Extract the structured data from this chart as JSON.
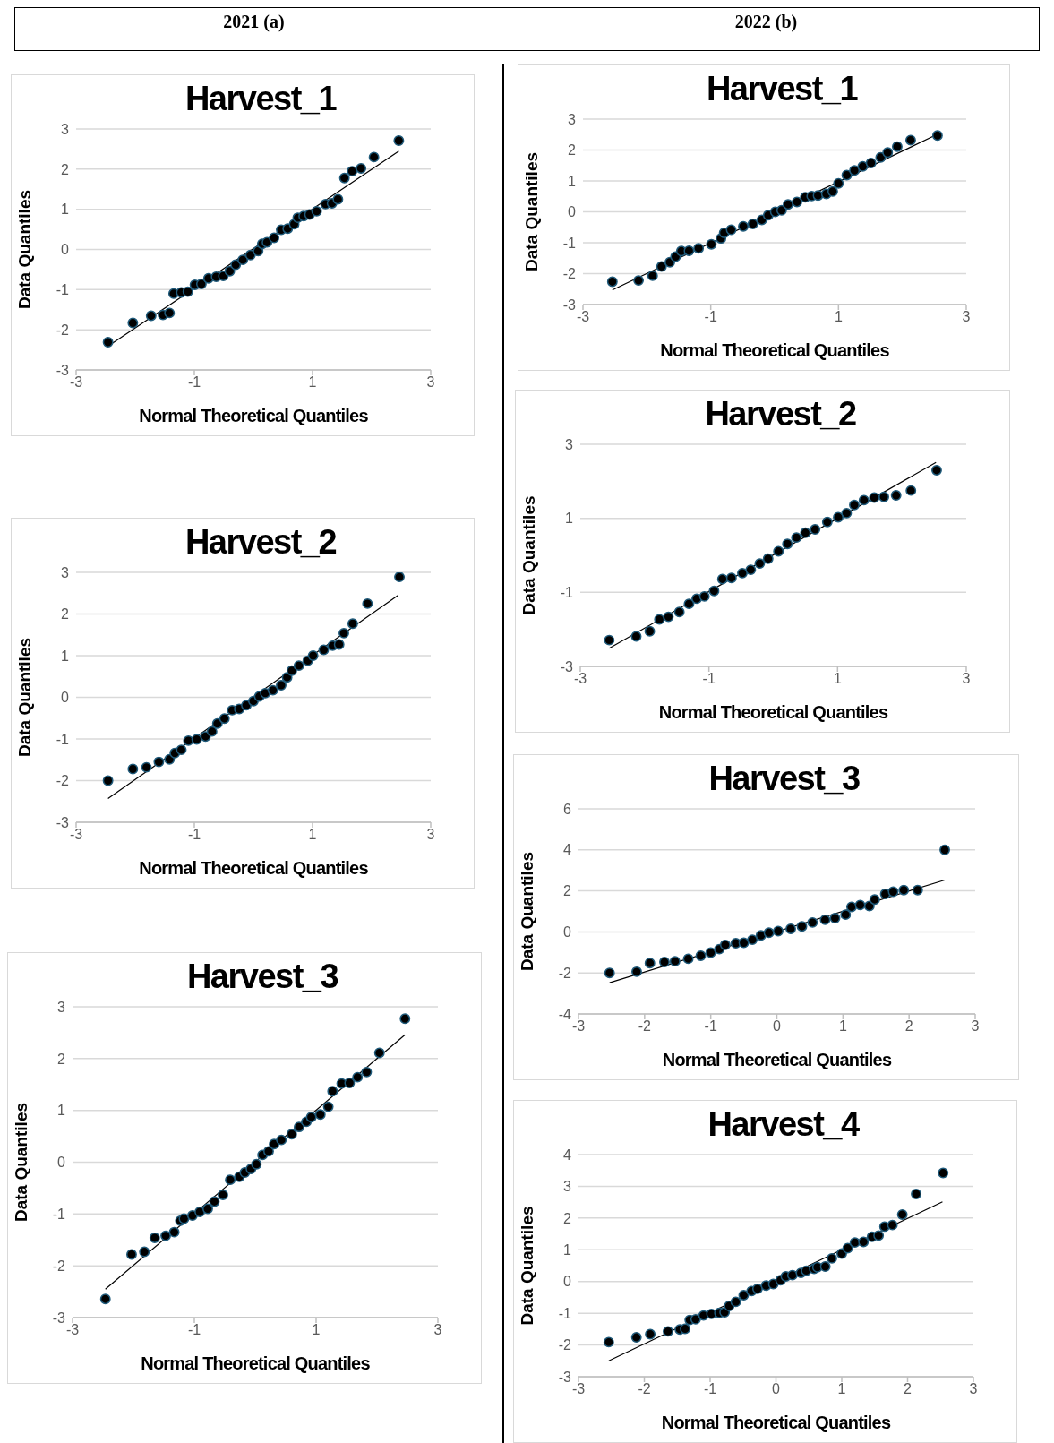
{
  "chart_data": [
    {
      "type": "other",
      "title": "2021 (a)"
    },
    {
      "type": "other",
      "title": "2022 (b)"
    },
    {
      "type": "scatter",
      "title": "Harvest_1",
      "xlabel": "Normal Theoretical Quantiles",
      "ylabel": "Data Quantiles",
      "xlim": [
        -3,
        3
      ],
      "xticks": [
        -3,
        -1,
        1,
        3
      ],
      "ylim": [
        -3,
        3
      ],
      "yticks": [
        -3,
        -2,
        -1,
        0,
        1,
        2,
        3
      ],
      "grid": "y",
      "marker": "circle",
      "series": [
        {
          "color": "#000000",
          "x": [
            -2.46,
            -2.04,
            -1.73,
            -1.53,
            -1.42,
            -1.35,
            -1.22,
            -1.11,
            -0.99,
            -0.88,
            -0.76,
            -0.63,
            -0.51,
            -0.4,
            -0.3,
            -0.18,
            -0.05,
            0.08,
            0.15,
            0.23,
            0.35,
            0.47,
            0.58,
            0.69,
            0.75,
            0.85,
            0.95,
            1.07,
            1.22,
            1.33,
            1.43,
            1.54,
            1.67,
            1.82,
            2.04,
            2.46
          ],
          "values": [
            -2.31,
            -1.83,
            -1.65,
            -1.63,
            -1.58,
            -1.1,
            -1.07,
            -1.05,
            -0.88,
            -0.86,
            -0.72,
            -0.68,
            -0.66,
            -0.54,
            -0.38,
            -0.26,
            -0.14,
            -0.04,
            0.14,
            0.18,
            0.29,
            0.49,
            0.52,
            0.63,
            0.79,
            0.83,
            0.87,
            0.95,
            1.13,
            1.15,
            1.25,
            1.78,
            1.95,
            2.02,
            2.3,
            2.71
          ]
        },
        {
          "type": "line",
          "color": "#000000",
          "marker": "none",
          "x": [
            -2.41,
            2.46
          ],
          "values": [
            -2.36,
            2.45
          ]
        }
      ]
    },
    {
      "type": "scatter",
      "title": "Harvest_2",
      "xlabel": "Normal Theoretical Quantiles",
      "ylabel": "Data Quantiles",
      "xlim": [
        -3,
        3
      ],
      "xticks": [
        -3,
        -1,
        1,
        3
      ],
      "ylim": [
        -3,
        3
      ],
      "yticks": [
        -3,
        -2,
        -1,
        0,
        1,
        2,
        3
      ],
      "grid": "y",
      "marker": "circle",
      "series": [
        {
          "color": "#000000",
          "x": [
            -2.46,
            -2.04,
            -1.81,
            -1.6,
            -1.42,
            -1.33,
            -1.22,
            -1.1,
            -0.96,
            -0.81,
            -0.7,
            -0.61,
            -0.49,
            -0.36,
            -0.24,
            -0.12,
            0.0,
            0.1,
            0.2,
            0.33,
            0.47,
            0.57,
            0.65,
            0.77,
            0.92,
            1.01,
            1.19,
            1.34,
            1.45,
            1.53,
            1.68,
            1.93,
            2.47
          ],
          "values": [
            -2.0,
            -1.72,
            -1.68,
            -1.55,
            -1.49,
            -1.34,
            -1.26,
            -1.04,
            -1.01,
            -0.94,
            -0.82,
            -0.63,
            -0.51,
            -0.31,
            -0.28,
            -0.19,
            -0.09,
            0.02,
            0.1,
            0.17,
            0.29,
            0.48,
            0.64,
            0.76,
            0.88,
            1.0,
            1.14,
            1.24,
            1.27,
            1.54,
            1.77,
            2.25,
            2.89
          ]
        },
        {
          "type": "line",
          "color": "#000000",
          "marker": "none",
          "x": [
            -2.46,
            2.45
          ],
          "values": [
            -2.43,
            2.45
          ]
        }
      ]
    },
    {
      "type": "scatter",
      "title": "Harvest_3",
      "xlabel": "Normal Theoretical Quantiles",
      "ylabel": "Data Quantiles",
      "xlim": [
        -3,
        3
      ],
      "xticks": [
        -3,
        -1,
        1,
        3
      ],
      "ylim": [
        -3,
        3
      ],
      "yticks": [
        -3,
        -2,
        -1,
        0,
        1,
        2,
        3
      ],
      "grid": "y",
      "marker": "circle",
      "series": [
        {
          "color": "#000000",
          "x": [
            -2.46,
            -2.03,
            -1.82,
            -1.65,
            -1.47,
            -1.33,
            -1.23,
            -1.17,
            -1.03,
            -0.91,
            -0.78,
            -0.67,
            -0.53,
            -0.41,
            -0.26,
            -0.17,
            -0.07,
            0.02,
            0.12,
            0.22,
            0.31,
            0.43,
            0.6,
            0.72,
            0.84,
            0.92,
            1.07,
            1.2,
            1.27,
            1.42,
            1.55,
            1.68,
            1.83,
            2.04,
            2.46
          ],
          "values": [
            -2.64,
            -1.78,
            -1.73,
            -1.46,
            -1.42,
            -1.35,
            -1.13,
            -1.09,
            -1.03,
            -0.96,
            -0.9,
            -0.76,
            -0.63,
            -0.34,
            -0.28,
            -0.2,
            -0.13,
            -0.04,
            0.14,
            0.21,
            0.35,
            0.43,
            0.54,
            0.68,
            0.78,
            0.87,
            0.92,
            1.07,
            1.37,
            1.52,
            1.53,
            1.64,
            1.74,
            2.11,
            2.77
          ]
        },
        {
          "type": "line",
          "color": "#000000",
          "marker": "none",
          "x": [
            -2.46,
            2.46
          ],
          "values": [
            -2.45,
            2.46
          ]
        }
      ]
    },
    {
      "type": "scatter",
      "title": "Harvest_1",
      "xlabel": "Normal Theoretical Quantiles",
      "ylabel": "Data Quantiles",
      "xlim": [
        -3,
        3
      ],
      "xticks": [
        -3,
        -1,
        1,
        3
      ],
      "ylim": [
        -3,
        3
      ],
      "yticks": [
        -3,
        -2,
        -1,
        0,
        1,
        2,
        3
      ],
      "grid": "y",
      "marker": "circle",
      "series": [
        {
          "color": "#000000",
          "x": [
            -2.54,
            -2.13,
            -1.91,
            -1.77,
            -1.64,
            -1.55,
            -1.46,
            -1.34,
            -1.19,
            -0.99,
            -0.84,
            -0.79,
            -0.68,
            -0.49,
            -0.34,
            -0.2,
            -0.1,
            0.01,
            0.11,
            0.21,
            0.35,
            0.48,
            0.58,
            0.68,
            0.81,
            0.91,
            1.0,
            1.13,
            1.25,
            1.38,
            1.51,
            1.66,
            1.77,
            1.92,
            2.13,
            2.55
          ],
          "values": [
            -2.26,
            -2.22,
            -2.07,
            -1.77,
            -1.63,
            -1.45,
            -1.27,
            -1.26,
            -1.18,
            -1.05,
            -0.86,
            -0.68,
            -0.58,
            -0.47,
            -0.39,
            -0.26,
            -0.11,
            0.0,
            0.05,
            0.24,
            0.32,
            0.47,
            0.51,
            0.53,
            0.58,
            0.66,
            0.92,
            1.19,
            1.34,
            1.47,
            1.58,
            1.76,
            1.92,
            2.11,
            2.32,
            2.47
          ]
        },
        {
          "type": "line",
          "color": "#000000",
          "marker": "none",
          "x": [
            -2.54,
            2.48
          ],
          "values": [
            -2.53,
            2.44
          ]
        }
      ]
    },
    {
      "type": "scatter",
      "title": "Harvest_2",
      "xlabel": "Normal Theoretical Quantiles",
      "ylabel": "Data Quantiles",
      "xlim": [
        -3,
        3
      ],
      "xticks": [
        -3,
        -1,
        1,
        3
      ],
      "ylim": [
        -3,
        3
      ],
      "yticks": [
        -3,
        -1,
        1,
        3
      ],
      "grid": "y",
      "marker": "circle",
      "series": [
        {
          "color": "#000000",
          "x": [
            -2.55,
            -2.13,
            -1.92,
            -1.77,
            -1.63,
            -1.46,
            -1.31,
            -1.19,
            -1.07,
            -0.92,
            -0.79,
            -0.65,
            -0.48,
            -0.35,
            -0.21,
            -0.08,
            0.08,
            0.22,
            0.36,
            0.5,
            0.65,
            0.84,
            1.01,
            1.14,
            1.26,
            1.41,
            1.57,
            1.72,
            1.91,
            2.14,
            2.54
          ],
          "values": [
            -2.29,
            -2.19,
            -2.05,
            -1.73,
            -1.66,
            -1.53,
            -1.31,
            -1.17,
            -1.11,
            -0.96,
            -0.64,
            -0.61,
            -0.48,
            -0.39,
            -0.22,
            -0.09,
            0.11,
            0.31,
            0.48,
            0.61,
            0.7,
            0.9,
            1.03,
            1.14,
            1.36,
            1.49,
            1.56,
            1.58,
            1.62,
            1.75,
            2.3
          ]
        },
        {
          "type": "line",
          "color": "#000000",
          "marker": "none",
          "x": [
            -2.55,
            2.53
          ],
          "values": [
            -2.51,
            2.51
          ]
        }
      ]
    },
    {
      "type": "scatter",
      "title": "Harvest_3",
      "xlabel": "Normal Theoretical Quantiles",
      "ylabel": "Data Quantiles",
      "xlim": [
        -3,
        3
      ],
      "xticks": [
        -3,
        -2,
        -1,
        0,
        1,
        2,
        3
      ],
      "ylim": [
        -4,
        6
      ],
      "yticks": [
        -4,
        -2,
        0,
        2,
        4,
        6
      ],
      "grid": "y",
      "marker": "circle",
      "series": [
        {
          "color": "#000000",
          "x": [
            -2.53,
            -2.12,
            -1.92,
            -1.7,
            -1.54,
            -1.34,
            -1.15,
            -1.0,
            -0.87,
            -0.78,
            -0.62,
            -0.5,
            -0.37,
            -0.24,
            -0.12,
            0.02,
            0.21,
            0.38,
            0.54,
            0.73,
            0.88,
            1.04,
            1.13,
            1.26,
            1.4,
            1.48,
            1.64,
            1.76,
            1.92,
            2.13,
            2.54
          ],
          "values": [
            -2.0,
            -1.94,
            -1.52,
            -1.47,
            -1.43,
            -1.31,
            -1.16,
            -1.01,
            -0.84,
            -0.63,
            -0.55,
            -0.53,
            -0.38,
            -0.17,
            -0.04,
            0.04,
            0.15,
            0.27,
            0.46,
            0.59,
            0.67,
            0.84,
            1.22,
            1.31,
            1.26,
            1.58,
            1.85,
            1.96,
            2.04,
            2.04,
            4.0
          ]
        },
        {
          "type": "line",
          "color": "#000000",
          "marker": "none",
          "x": [
            -2.53,
            2.54
          ],
          "values": [
            -2.48,
            2.53
          ]
        }
      ]
    },
    {
      "type": "scatter",
      "title": "Harvest_4",
      "xlabel": "Normal Theoretical Quantiles",
      "ylabel": "Data Quantiles",
      "xlim": [
        -3,
        3
      ],
      "xticks": [
        -3,
        -2,
        -1,
        0,
        1,
        2,
        3
      ],
      "ylim": [
        -3,
        4
      ],
      "yticks": [
        -3,
        -2,
        -1,
        0,
        1,
        2,
        3,
        4
      ],
      "grid": "y",
      "marker": "circle",
      "series": [
        {
          "color": "#000000",
          "x": [
            -2.54,
            -2.12,
            -1.91,
            -1.64,
            -1.46,
            -1.38,
            -1.31,
            -1.22,
            -1.1,
            -0.98,
            -0.86,
            -0.78,
            -0.71,
            -0.61,
            -0.49,
            -0.37,
            -0.28,
            -0.15,
            -0.04,
            0.07,
            0.15,
            0.25,
            0.38,
            0.46,
            0.58,
            0.63,
            0.75,
            0.85,
            1.0,
            1.09,
            1.2,
            1.33,
            1.46,
            1.56,
            1.65,
            1.77,
            1.92,
            2.13,
            2.54
          ],
          "values": [
            -1.91,
            -1.76,
            -1.66,
            -1.57,
            -1.51,
            -1.49,
            -1.21,
            -1.19,
            -1.07,
            -1.02,
            -0.99,
            -0.97,
            -0.77,
            -0.64,
            -0.43,
            -0.3,
            -0.23,
            -0.13,
            -0.08,
            0.04,
            0.16,
            0.2,
            0.27,
            0.34,
            0.4,
            0.45,
            0.47,
            0.73,
            0.88,
            1.05,
            1.23,
            1.25,
            1.41,
            1.45,
            1.73,
            1.78,
            2.11,
            2.76,
            3.42
          ]
        },
        {
          "type": "line",
          "color": "#000000",
          "marker": "none",
          "x": [
            -2.54,
            2.53
          ],
          "values": [
            -2.5,
            2.51
          ]
        }
      ]
    }
  ]
}
